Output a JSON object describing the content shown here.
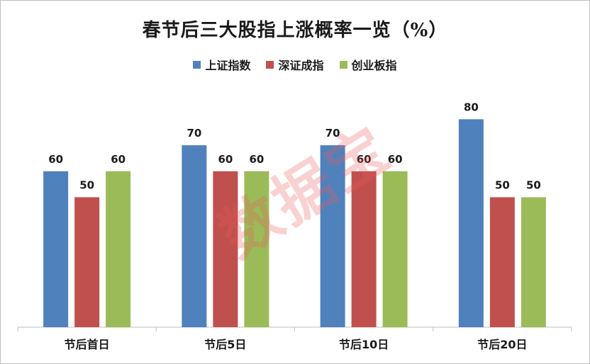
{
  "chart_data": {
    "type": "bar",
    "title": "春节后三大股指上涨概率一览（%）",
    "categories": [
      "节后首日",
      "节后5日",
      "节后10日",
      "节后20日"
    ],
    "series": [
      {
        "name": "上证指数",
        "color": "#4f81bd",
        "values": [
          60,
          70,
          70,
          80
        ]
      },
      {
        "name": "深证成指",
        "color": "#c0504d",
        "values": [
          50,
          60,
          60,
          50
        ]
      },
      {
        "name": "创业板指",
        "color": "#9bbb59",
        "values": [
          60,
          60,
          60,
          50
        ]
      }
    ],
    "ylim": [
      0,
      100
    ],
    "grid": false,
    "legend_position": "top",
    "show_data_labels": true,
    "watermark": "数据宝"
  }
}
